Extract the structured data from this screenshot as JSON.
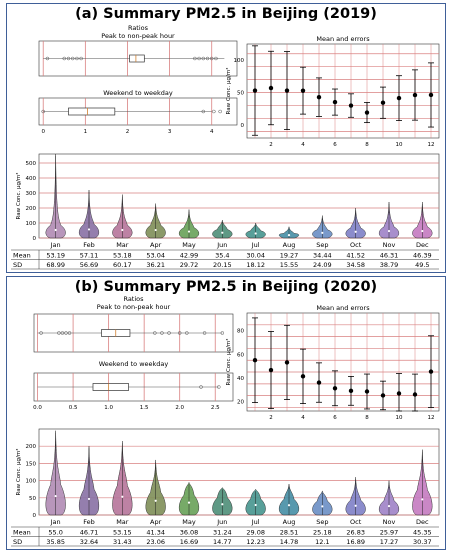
{
  "panels": [
    {
      "title": "(a) Summary PM2.5 in Beijing (2019)",
      "ratios": {
        "title": "Ratios",
        "peak": {
          "label": "Peak to non-peak hour"
        },
        "weekend": {
          "label": "Weekend to weekday"
        },
        "ticks": [
          "0",
          "1",
          "2",
          "3",
          "4"
        ]
      },
      "mean_errors": {
        "title": "Mean and errors",
        "ylabel": "Raw Conc. μg/m³",
        "yticks": [
          "0",
          "50",
          "100"
        ],
        "xticks": [
          "2",
          "4",
          "6",
          "8",
          "10",
          "12"
        ]
      },
      "violin": {
        "ylabel": "Raw Conc. μg/m³",
        "yticks": [
          "0",
          "100",
          "200",
          "300",
          "400",
          "500"
        ]
      },
      "table": {
        "months": [
          "Jan",
          "Feb",
          "Mar",
          "Apr",
          "May",
          "Jun",
          "Jul",
          "Aug",
          "Sep",
          "Oct",
          "Nov",
          "Dec"
        ],
        "mean_label": "Mean",
        "sd_label": "SD",
        "mean": [
          "53.19",
          "57.11",
          "53.18",
          "53.04",
          "42.99",
          "35.4",
          "30.04",
          "19.27",
          "34.44",
          "41.52",
          "46.31",
          "46.39"
        ],
        "sd": [
          "68.99",
          "56.69",
          "60.17",
          "36.21",
          "29.72",
          "20.15",
          "18.12",
          "15.55",
          "24.09",
          "34.58",
          "38.79",
          "49.5"
        ]
      }
    },
    {
      "title": "(b) Summary PM2.5 in Beijing (2020)",
      "ratios": {
        "title": "Ratios",
        "peak": {
          "label": "Peak to non-peak hour"
        },
        "weekend": {
          "label": "Weekend to weekday"
        },
        "ticks": [
          "0.0",
          "0.5",
          "1.0",
          "1.5",
          "2.0",
          "2.5"
        ]
      },
      "mean_errors": {
        "title": "Mean and errors",
        "ylabel": "Raw Conc. μg/m³",
        "yticks": [
          "20",
          "40",
          "60",
          "80"
        ],
        "xticks": [
          "2",
          "4",
          "6",
          "8",
          "10",
          "12"
        ]
      },
      "violin": {
        "ylabel": "Raw Conc. μg/m³",
        "yticks": [
          "0",
          "50",
          "100",
          "150",
          "200"
        ]
      },
      "table": {
        "months": [
          "Jan",
          "Feb",
          "Mar",
          "Apr",
          "May",
          "Jun",
          "Jul",
          "Aug",
          "Sep",
          "Oct",
          "Nov",
          "Dec"
        ],
        "mean_label": "Mean",
        "sd_label": "SD",
        "mean": [
          "55.0",
          "46.71",
          "53.15",
          "41.34",
          "36.08",
          "31.24",
          "29.08",
          "28.51",
          "25.18",
          "26.83",
          "25.97",
          "45.35"
        ],
        "sd": [
          "35.85",
          "32.64",
          "31.43",
          "23.06",
          "16.69",
          "14.77",
          "12.23",
          "14.78",
          "12.1",
          "16.89",
          "17.27",
          "30.37"
        ]
      }
    }
  ],
  "chart_data": [
    {
      "type": "box",
      "title": "Ratios",
      "series": [
        {
          "name": "Peak to non-peak hour",
          "box": [
            2.05,
            2.4
          ],
          "median": 2.2,
          "whiskers": [
            0,
            4.3
          ],
          "outliers": [
            0.1,
            0.5,
            0.6,
            0.7,
            0.8,
            0.9,
            3.6,
            3.7,
            3.8,
            3.9,
            4.0,
            4.1
          ]
        },
        {
          "name": "Weekend to weekday",
          "box": [
            0.6,
            1.7
          ],
          "median": 1.05,
          "whiskers": [
            0,
            4.0
          ],
          "outliers": [
            0.0,
            3.8,
            4.05,
            4.2
          ]
        }
      ],
      "xlim": [
        -0.1,
        4.6
      ],
      "grid": true
    },
    {
      "type": "errorbar",
      "title": "Mean and errors",
      "ylabel": "Raw Conc. μg/m³",
      "x": [
        1,
        2,
        3,
        4,
        5,
        6,
        7,
        8,
        9,
        10,
        11,
        12
      ],
      "y": [
        53.19,
        57.11,
        53.18,
        53.04,
        42.99,
        35.4,
        30.04,
        19.27,
        34.44,
        41.52,
        46.31,
        46.39
      ],
      "err": [
        68.99,
        56.69,
        60.17,
        36.21,
        29.72,
        20.15,
        18.12,
        15.55,
        24.09,
        34.58,
        38.79,
        49.5
      ],
      "xlim": [
        0.5,
        12.5
      ],
      "ylim": [
        -20,
        125
      ],
      "grid": true
    },
    {
      "type": "violin",
      "ylabel": "Raw Conc. μg/m³",
      "categories": [
        "Jan",
        "Feb",
        "Mar",
        "Apr",
        "May",
        "Jun",
        "Jul",
        "Aug",
        "Sep",
        "Oct",
        "Nov",
        "Dec"
      ],
      "max": [
        560,
        320,
        290,
        230,
        190,
        120,
        100,
        75,
        150,
        200,
        240,
        240
      ],
      "ylim": [
        0,
        560
      ],
      "grid": true
    },
    {
      "type": "box",
      "title": "Ratios",
      "series": [
        {
          "name": "Peak to non-peak hour",
          "box": [
            0.9,
            1.3
          ],
          "median": 1.1,
          "whiskers": [
            0.0,
            2.6
          ],
          "outliers": [
            0.05,
            0.3,
            0.35,
            0.4,
            0.45,
            1.65,
            1.75,
            1.85,
            2.0,
            2.1,
            2.35,
            2.6
          ]
        },
        {
          "name": "Weekend to weekday",
          "box": [
            0.78,
            1.28
          ],
          "median": 1.0,
          "whiskers": [
            0.0,
            2.55
          ],
          "outliers": [
            2.3,
            2.55
          ]
        }
      ],
      "xlim": [
        -0.05,
        2.75
      ],
      "grid": true
    },
    {
      "type": "errorbar",
      "title": "Mean and errors",
      "ylabel": "Raw Conc. μg/m³",
      "x": [
        1,
        2,
        3,
        4,
        5,
        6,
        7,
        8,
        9,
        10,
        11,
        12
      ],
      "y": [
        55.0,
        46.71,
        53.15,
        41.34,
        36.08,
        31.24,
        29.08,
        28.51,
        25.18,
        26.83,
        25.97,
        45.35
      ],
      "err": [
        35.85,
        32.64,
        31.43,
        23.06,
        16.69,
        14.77,
        12.23,
        14.78,
        12.1,
        16.89,
        17.27,
        30.37
      ],
      "xlim": [
        0.5,
        12.5
      ],
      "ylim": [
        12,
        95
      ],
      "grid": true
    },
    {
      "type": "violin",
      "ylabel": "Raw Conc. μg/m³",
      "categories": [
        "Jan",
        "Feb",
        "Mar",
        "Apr",
        "May",
        "Jun",
        "Jul",
        "Aug",
        "Sep",
        "Oct",
        "Nov",
        "Dec"
      ],
      "max": [
        245,
        200,
        215,
        160,
        95,
        80,
        75,
        90,
        70,
        110,
        100,
        190
      ],
      "ylim": [
        0,
        250
      ],
      "grid": true
    }
  ],
  "colors": {
    "frame": "#3f5f98",
    "grid": "#d98080",
    "violins": [
      "#b08bb4",
      "#8870a4",
      "#b6749a",
      "#7e8e58",
      "#68a158",
      "#4e8e78",
      "#46958e",
      "#468ea5",
      "#6a8ec4",
      "#7e7fc6",
      "#9f82c6",
      "#c47ac0"
    ]
  }
}
